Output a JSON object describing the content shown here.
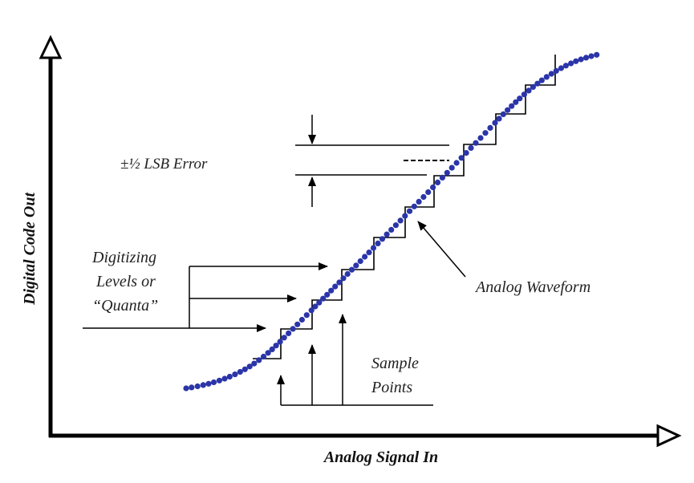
{
  "axes": {
    "x_label": "Analog Signal In",
    "y_label": "Digital Code Out"
  },
  "annotations": {
    "lsb_error": "±½  LSB Error",
    "digitizing_line1": "Digitizing",
    "digitizing_line2": "Levels or",
    "digitizing_line3": "“Quanta”",
    "analog_waveform": "Analog Waveform",
    "sample_line1": "Sample",
    "sample_line2": "Points"
  },
  "colors": {
    "waveform_dots": "#2b35a8",
    "lines": "#000000"
  }
}
